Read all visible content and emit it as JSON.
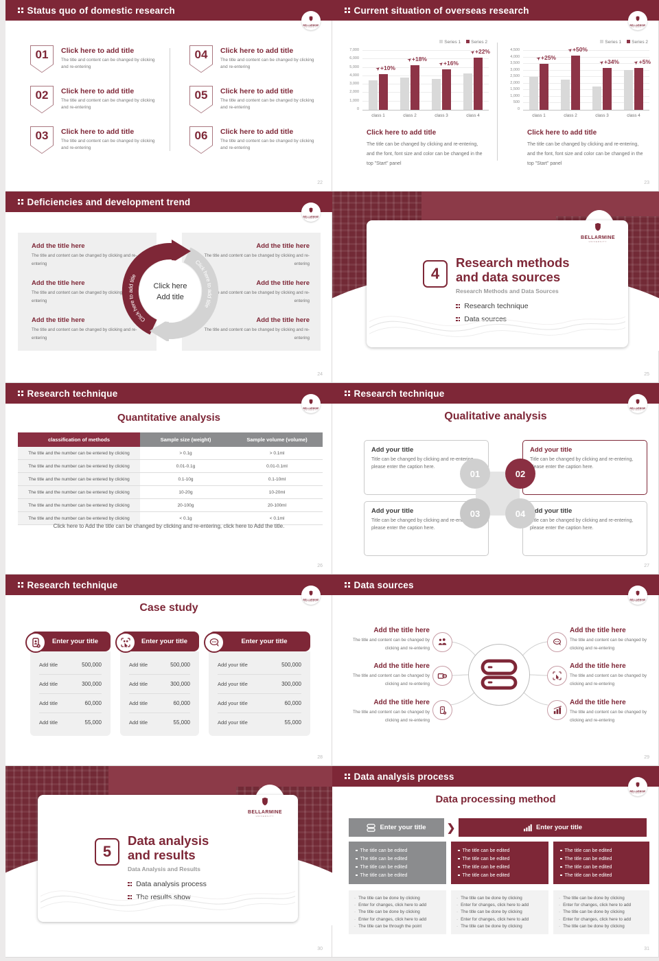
{
  "brand": {
    "name": "BELLARMINE",
    "sub": "UNIVERSITY",
    "primary_color": "#7e2737",
    "accent_color": "#8d3447",
    "gray": "#8b8c8e"
  },
  "icons": {
    "header": "grid-dots-icon",
    "logo": "bellarmine-crest-icon",
    "case_cards": [
      "phone-user-icon",
      "qr-scan-icon",
      "chat-bubbles-icon"
    ],
    "data_sources_center": "database-icon",
    "data_sources": [
      "people-icon",
      "wallet-icon",
      "mobile-add-icon",
      "chat-bubble-icon",
      "tap-scan-icon",
      "bar-chart-icon"
    ],
    "process_bars": [
      "database-icon",
      "bar-chart-icon"
    ],
    "percent_arrow": "trend-arrow-icon"
  },
  "s22": {
    "title": "Status quo of domestic research",
    "page": "22",
    "item_title": "Click here to add title",
    "item_body": "The title and content can be changed by clicking and re-entering",
    "nums": [
      "01",
      "02",
      "03",
      "04",
      "05",
      "06"
    ]
  },
  "s23": {
    "title": "Current situation of overseas research",
    "page": "23",
    "caption_title": "Click here to add title",
    "caption_body": "The title can be changed by clicking and re-entering, and the font, font size and color can be changed in the top \"Start\" panel"
  },
  "s24": {
    "title": "Deficiencies and development trend",
    "page": "24",
    "item_title": "Add the title here",
    "item_body": "The title and content can be changed by clicking and re-entering",
    "arc_text": "Click here to add title",
    "center_line1": "Click here",
    "center_line2": "Add title"
  },
  "s25": {
    "page": "25",
    "num": "4",
    "title_line1": "Research methods",
    "title_line2": "and data sources",
    "subtitle": "Research Methods and Data Sources",
    "bullets": [
      "Research technique",
      "Data sources"
    ]
  },
  "s26": {
    "title": "Research technique",
    "page": "26",
    "heading": "Quantitative analysis",
    "headers": [
      "classification of methods",
      "Sample size (weight)",
      "Sample volume (volume)"
    ],
    "row_label": "The title and the number can be entered by clicking",
    "rows": [
      [
        "> 0.1g",
        "> 0.1ml"
      ],
      [
        "0.01-0.1g",
        "0.01-0.1ml"
      ],
      [
        "0.1-10g",
        "0.1-10ml"
      ],
      [
        "10-20g",
        "10-20ml"
      ],
      [
        "20-100g",
        "20-100ml"
      ],
      [
        "< 0.1g",
        "< 0.1ml"
      ]
    ],
    "footnote": "Click here to Add the title can be changed by clicking and re-entering, click here to Add the title."
  },
  "s27": {
    "title": "Research technique",
    "page": "27",
    "heading": "Qualitative analysis",
    "card_title": "Add your title",
    "card_body": "Title can be changed by clicking and re-entering, please enter the caption here.",
    "nums": [
      "01",
      "02",
      "03",
      "04"
    ]
  },
  "s28": {
    "title": "Research technique",
    "page": "28",
    "heading": "Case study",
    "card_header": "Enter your title",
    "row_label": "Add title",
    "row_label_alt": "Add your title",
    "values": [
      "500,000",
      "300,000",
      "60,000",
      "55,000"
    ]
  },
  "s29": {
    "title": "Data sources",
    "page": "29",
    "item_title": "Add the title here",
    "item_body": "The title and content can be changed by clicking and re-entering"
  },
  "s30": {
    "page": "30",
    "num": "5",
    "title_line1": "Data analysis",
    "title_line2": "and results",
    "subtitle": "Data Analysis and Results",
    "bullets": [
      "Data analysis process",
      "The results show"
    ]
  },
  "s31": {
    "title": "Data analysis process",
    "page": "31",
    "heading": "Data processing method",
    "bar1_label": "Enter your title",
    "bar2_label": "Enter your title",
    "edited_line": "The title can be edited",
    "list1": [
      "The title can be done by clicking",
      "Enter for changes, click here to add",
      "The title can be done by clicking",
      "Enter for changes, click here to add",
      "The title can be through the point"
    ],
    "list2": [
      "The title can be done by clicking",
      "Enter for changes, click here to add",
      "The title can be done by clicking",
      "Enter for changes, click here to add",
      "The title can be done by clicking"
    ],
    "list3": [
      "The title can be done by clicking",
      "Enter for changes, click here to add",
      "The title can be done by clicking",
      "Enter for changes, click here to add",
      "The title can be done by clicking"
    ]
  },
  "chart_data": [
    {
      "type": "bar",
      "title": "",
      "xlabel": "",
      "ylabel": "",
      "categories": [
        "class 1",
        "class 2",
        "class 3",
        "class 4"
      ],
      "series": [
        {
          "name": "Series 1",
          "values": [
            3500,
            3800,
            3700,
            4300
          ]
        },
        {
          "name": "Series 2",
          "values": [
            4200,
            5300,
            4800,
            6200
          ]
        }
      ],
      "annotations": [
        "+10%",
        "+18%",
        "+16%",
        "+22%"
      ],
      "ylim": [
        0,
        7000
      ],
      "yticks": [
        "0",
        "1,000",
        "2,000",
        "3,000",
        "4,000",
        "5,000",
        "6,000",
        "7,000"
      ],
      "colors": [
        "#d9d9d9",
        "#8d3447"
      ],
      "grid": true,
      "legend_position": "top-right"
    },
    {
      "type": "bar",
      "title": "",
      "xlabel": "",
      "ylabel": "",
      "categories": [
        "class 1",
        "class 2",
        "class 3",
        "class 4"
      ],
      "series": [
        {
          "name": "Series 1",
          "values": [
            2500,
            2300,
            1800,
            3050
          ]
        },
        {
          "name": "Series 2",
          "values": [
            3500,
            4150,
            3200,
            3200
          ]
        }
      ],
      "annotations": [
        "+25%",
        "+50%",
        "+34%",
        "+5%"
      ],
      "ylim": [
        0,
        4500
      ],
      "yticks": [
        "0",
        "500",
        "1,000",
        "1,500",
        "2,000",
        "2,500",
        "3,000",
        "3,500",
        "4,000",
        "4,500"
      ],
      "colors": [
        "#d9d9d9",
        "#8d3447"
      ],
      "grid": true,
      "legend_position": "top-right"
    }
  ]
}
